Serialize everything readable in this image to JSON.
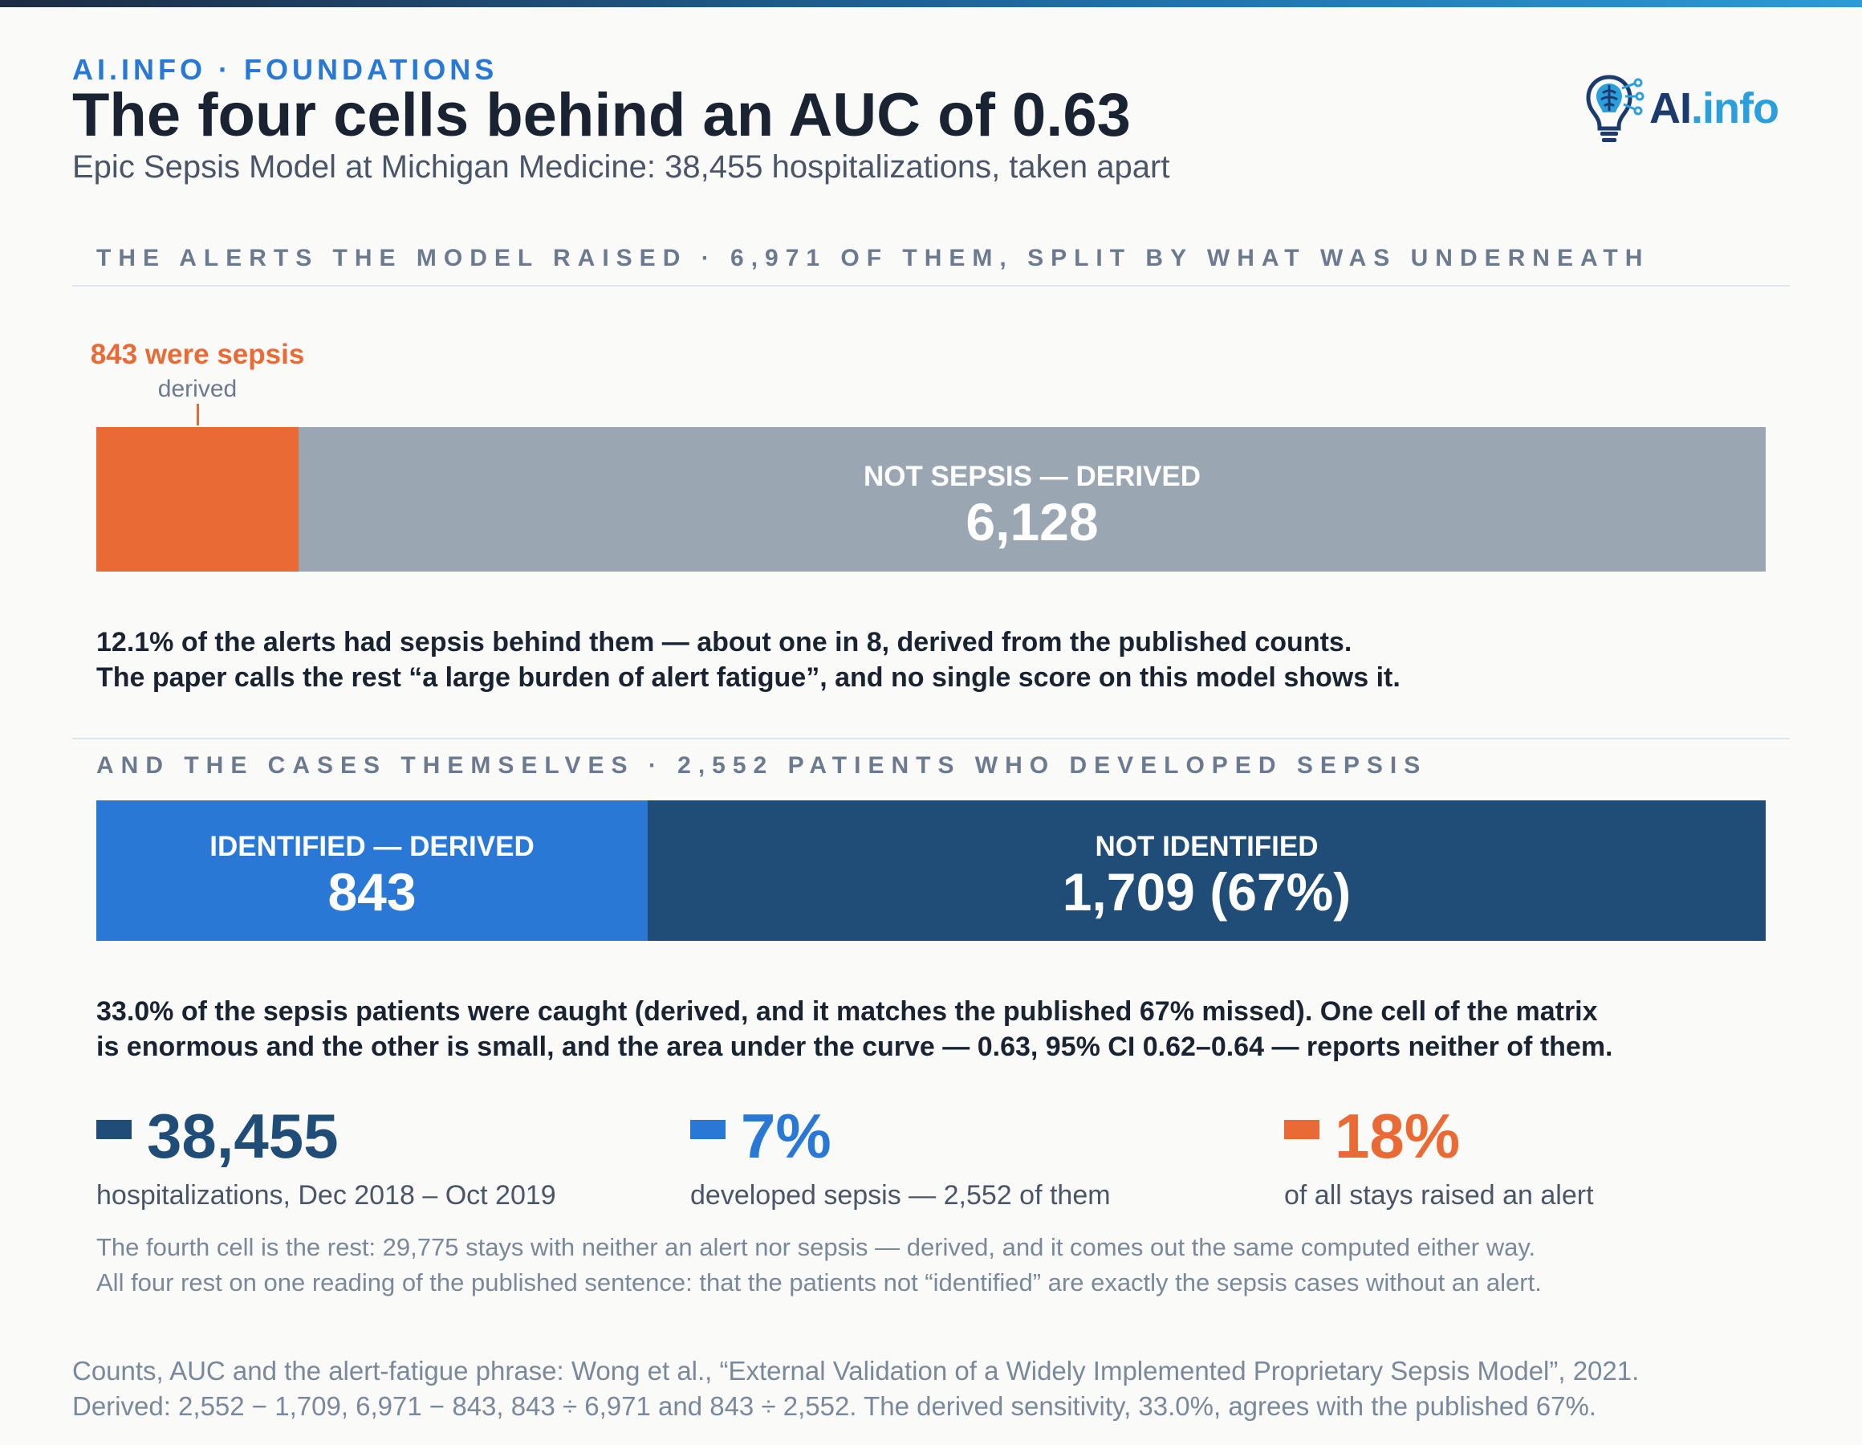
{
  "header": {
    "eyebrow": "AI.INFO · FOUNDATIONS",
    "title": "The four cells behind an AUC of 0.63",
    "subtitle": "Epic Sepsis Model at Michigan Medicine: 38,455 hospitalizations, taken apart"
  },
  "logo": {
    "brand": "AI",
    "brand_suffix": ".info",
    "icon": "lightbulb-brain-circuit-icon",
    "colors": {
      "primary": "#1b3b6e",
      "accent": "#2a9fdc"
    }
  },
  "colors": {
    "orange": "#e96a35",
    "grey": "#9aa7b3",
    "blue": "#2a78d6",
    "navy": "#1f4d78",
    "text": "#1a2332",
    "muted": "#6b7a8f"
  },
  "section_alerts": {
    "title": "THE ALERTS THE MODEL RAISED · 6,971 OF THEM, SPLIT BY WHAT WAS UNDERNEATH",
    "callout_main": "843 were sepsis",
    "callout_sub": "derived",
    "paragraph": [
      "12.1% of the alerts had sepsis behind them — about one in 8, derived from the published counts.",
      "The paper calls the rest “a large burden of alert fatigue”, and no single score on this model shows it."
    ]
  },
  "section_cases": {
    "title": "AND THE CASES THEMSELVES · 2,552 PATIENTS WHO DEVELOPED SEPSIS",
    "paragraph": [
      "33.0% of the sepsis patients were caught (derived, and it matches the published 67% missed). One cell of the matrix",
      "is enormous and the other is small, and the area under the curve — 0.63, 95% CI 0.62–0.64 — reports neither of them."
    ]
  },
  "chart_data": [
    {
      "type": "bar",
      "orientation": "horizontal-stacked",
      "total": 6971,
      "segments": [
        {
          "label": "",
          "value": 843,
          "display_value": "",
          "color": "#e96a35"
        },
        {
          "label": "NOT SEPSIS — DERIVED",
          "value": 6128,
          "display_value": "6,128",
          "color": "#9aa7b3"
        }
      ]
    },
    {
      "type": "bar",
      "orientation": "horizontal-stacked",
      "total": 2552,
      "segments": [
        {
          "label": "IDENTIFIED — DERIVED",
          "value": 843,
          "display_value": "843",
          "color": "#2a78d6"
        },
        {
          "label": "NOT IDENTIFIED",
          "value": 1709,
          "display_value": "1,709  (67%)",
          "color": "#1f4d78"
        }
      ]
    }
  ],
  "stats": [
    {
      "value": "38,455",
      "label": "hospitalizations, Dec 2018 – Oct 2019",
      "color": "#1f4d78"
    },
    {
      "value": "7%",
      "label": "developed sepsis — 2,552 of them",
      "color": "#2a78d6"
    },
    {
      "value": "18%",
      "label": "of all stays raised an alert",
      "color": "#e96a35"
    }
  ],
  "note": [
    "The fourth cell is the rest: 29,775 stays with neither an alert nor sepsis — derived, and it comes out the same computed either way.",
    "All four rest on one reading of the published sentence: that the patients not “identified” are exactly the sepsis cases without an alert."
  ],
  "source": [
    "Counts, AUC and the alert-fatigue phrase: Wong et al., “External Validation of a Widely Implemented Proprietary Sepsis Model”, 2021.",
    "Derived: 2,552 − 1,709, 6,971 − 843, 843 ÷ 6,971 and 843 ÷ 2,552. The derived sensitivity, 33.0%, agrees with the published 67%."
  ]
}
